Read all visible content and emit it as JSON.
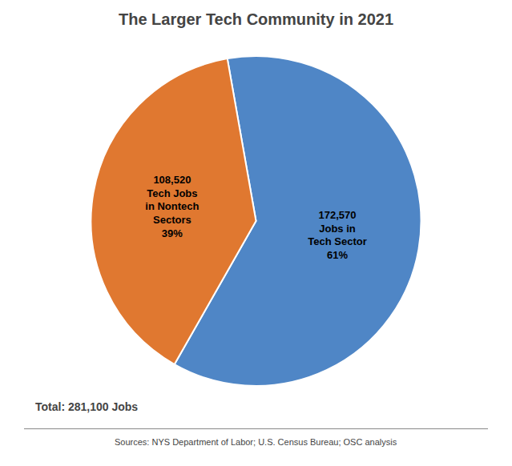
{
  "chart_data": {
    "type": "pie",
    "title": "The Larger Tech Community in 2021",
    "values": [
      61,
      39
    ],
    "value_labels": [
      "172,570\nJobs in\nTech Sector\n61%",
      "108,520\nTech Jobs\nin Nontech\nSectors\n39%"
    ],
    "colors": [
      "#4F86C6",
      "#E07830"
    ],
    "data_labels": true,
    "annotations": [
      "Total: 281,100 Jobs",
      "Sources: NYS Department of Labor; U.S. Census Bureau; OSC analysis"
    ]
  }
}
